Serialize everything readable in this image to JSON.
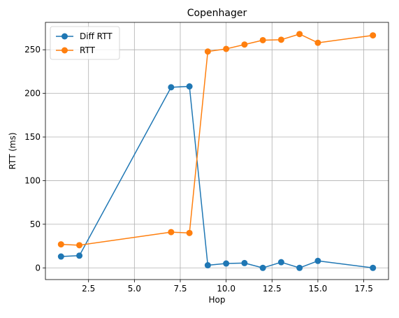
{
  "chart_data": {
    "type": "line",
    "title": "Copenhager",
    "xlabel": "Hop",
    "ylabel": "RTT (ms)",
    "xlim": [
      0.15,
      18.85
    ],
    "ylim": [
      -13.4,
      281.4
    ],
    "xticks": [
      2.5,
      5.0,
      7.5,
      10.0,
      12.5,
      15.0,
      17.5
    ],
    "xtick_labels": [
      "2.5",
      "5.0",
      "7.5",
      "10.0",
      "12.5",
      "15.0",
      "17.5"
    ],
    "yticks": [
      0,
      50,
      100,
      150,
      200,
      250
    ],
    "ytick_labels": [
      "0",
      "50",
      "100",
      "150",
      "200",
      "250"
    ],
    "grid": true,
    "legend_position": "upper-left",
    "series": [
      {
        "name": "Diff RTT",
        "color": "#1f77b4",
        "x": [
          1,
          2,
          7,
          8,
          9,
          10,
          11,
          12,
          13,
          14,
          15,
          18
        ],
        "y": [
          13,
          14,
          207,
          208,
          3,
          5,
          5.5,
          0,
          6.5,
          0,
          8,
          0
        ]
      },
      {
        "name": "RTT",
        "color": "#ff7f0e",
        "x": [
          1,
          2,
          7,
          8,
          9,
          10,
          11,
          12,
          13,
          14,
          15,
          18
        ],
        "y": [
          27,
          26,
          41,
          40,
          248,
          251,
          256,
          261,
          261.5,
          268,
          258,
          266.5
        ]
      }
    ]
  }
}
